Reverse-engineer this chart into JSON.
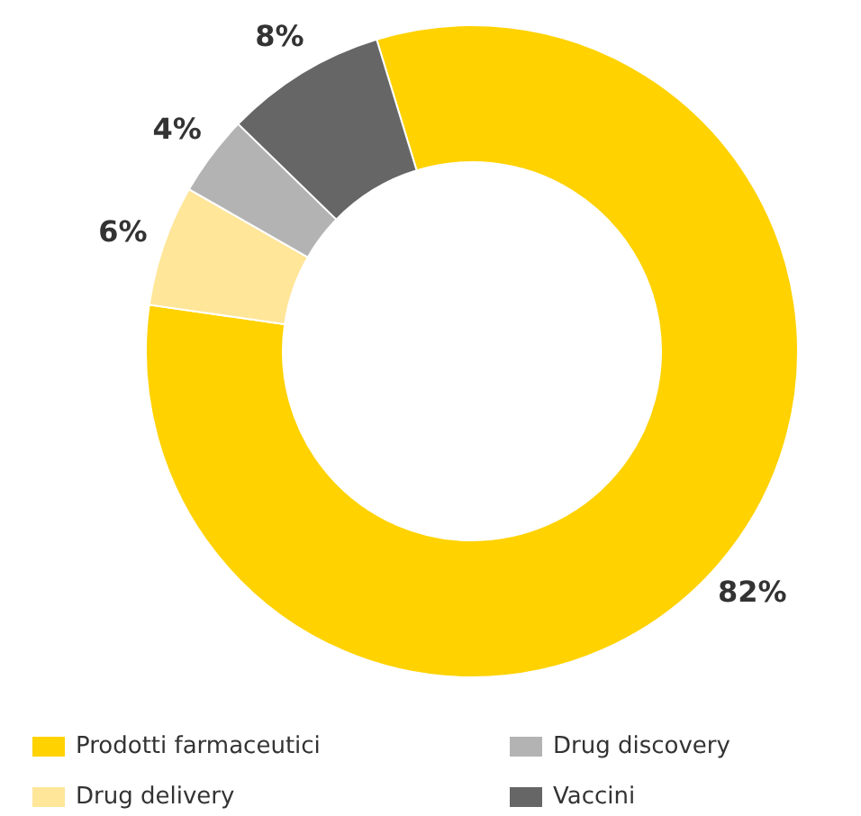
{
  "chart_data": {
    "type": "donut",
    "categories": [
      "Prodotti farmaceutici",
      "Drug delivery",
      "Drug discovery",
      "Vaccini"
    ],
    "values": [
      82,
      6,
      4,
      8
    ],
    "colors": [
      "#ffd200",
      "#ffe699",
      "#b3b3b3",
      "#666666"
    ],
    "value_labels": [
      "82%",
      "6%",
      "4%",
      "8%"
    ],
    "legend": "bottom"
  }
}
